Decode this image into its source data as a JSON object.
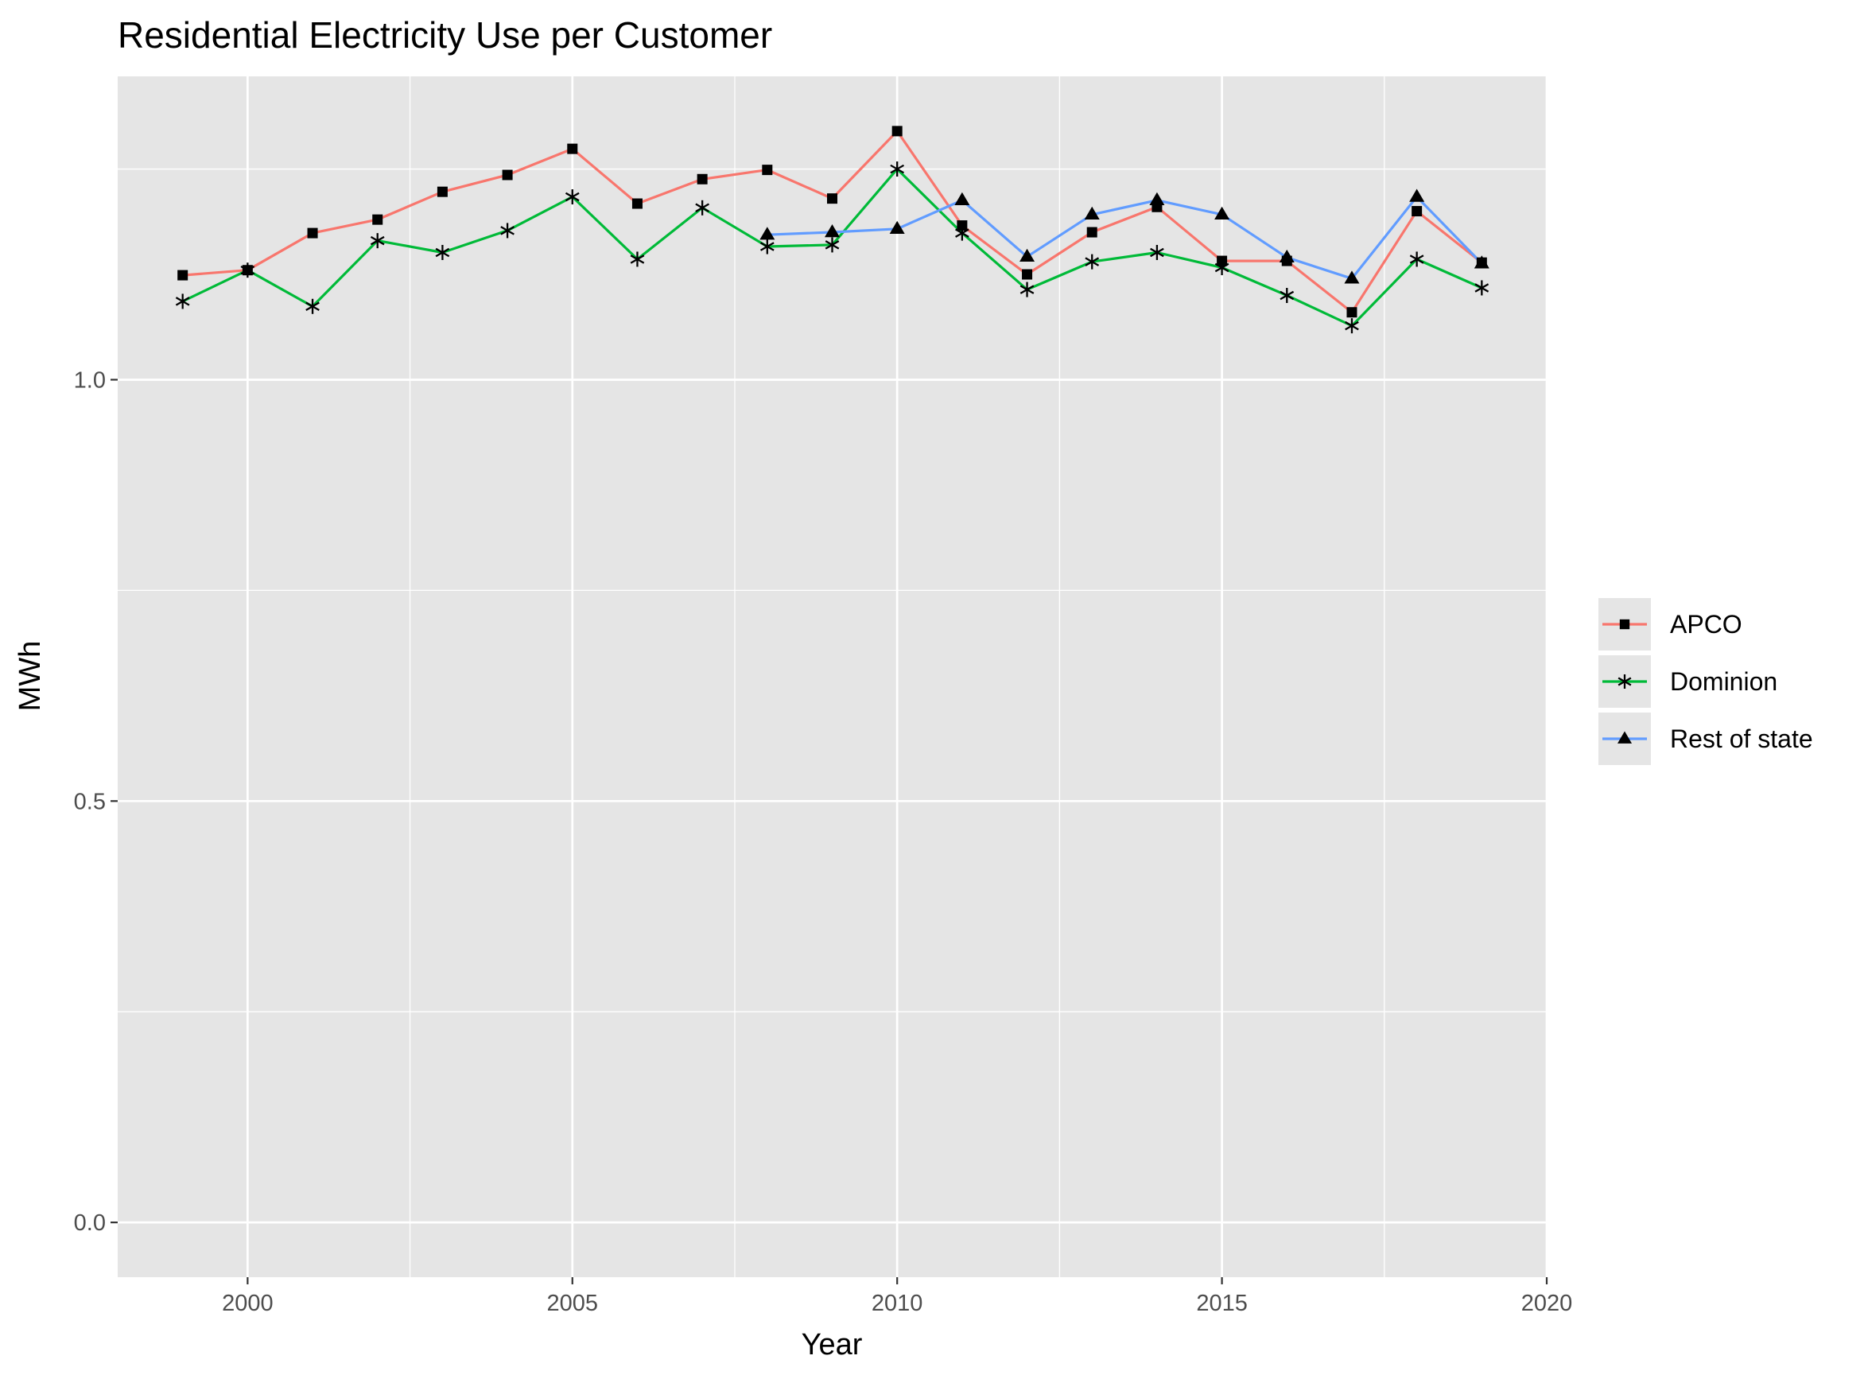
{
  "chart_data": {
    "type": "line",
    "title": "Residential Electricity Use per Customer",
    "xlabel": "Year",
    "ylabel": "MWh",
    "xlim": [
      1998,
      2020
    ],
    "ylim": [
      -0.065,
      1.36
    ],
    "x_ticks": [
      2000,
      2005,
      2010,
      2015,
      2020
    ],
    "x_tick_labels": [
      "2000",
      "2005",
      "2010",
      "2015",
      "2020"
    ],
    "y_ticks": [
      0.0,
      0.5,
      1.0
    ],
    "y_tick_labels": [
      "0.0",
      "0.5",
      "1.0"
    ],
    "grid": true,
    "panel_background": "#e5e5e5",
    "legend_position": "right",
    "series": [
      {
        "name": "APCO",
        "color": "#f8766d",
        "marker": "square",
        "x": [
          1999,
          2000,
          2001,
          2002,
          2003,
          2004,
          2005,
          2006,
          2007,
          2008,
          2009,
          2010,
          2011,
          2012,
          2013,
          2014,
          2015,
          2016,
          2017,
          2018,
          2019
        ],
        "values": [
          1.124,
          1.13,
          1.174,
          1.19,
          1.223,
          1.243,
          1.274,
          1.209,
          1.238,
          1.249,
          1.215,
          1.295,
          1.183,
          1.125,
          1.175,
          1.205,
          1.141,
          1.141,
          1.08,
          1.2,
          1.139
        ]
      },
      {
        "name": "Dominion",
        "color": "#00ba38",
        "marker": "asterisk",
        "x": [
          1999,
          2000,
          2001,
          2002,
          2003,
          2004,
          2005,
          2006,
          2007,
          2008,
          2009,
          2010,
          2011,
          2012,
          2013,
          2014,
          2015,
          2016,
          2017,
          2018,
          2019
        ],
        "values": [
          1.093,
          1.13,
          1.087,
          1.165,
          1.151,
          1.177,
          1.217,
          1.143,
          1.204,
          1.158,
          1.16,
          1.25,
          1.174,
          1.107,
          1.14,
          1.151,
          1.133,
          1.1,
          1.064,
          1.143,
          1.109
        ]
      },
      {
        "name": "Rest of state",
        "color": "#619cff",
        "marker": "triangle",
        "x": [
          2008,
          2009,
          2010,
          2011,
          2012,
          2013,
          2014,
          2015,
          2016,
          2017,
          2018,
          2019
        ],
        "values": [
          1.172,
          1.175,
          1.179,
          1.213,
          1.146,
          1.196,
          1.213,
          1.196,
          1.145,
          1.12,
          1.217,
          1.138
        ]
      }
    ]
  }
}
